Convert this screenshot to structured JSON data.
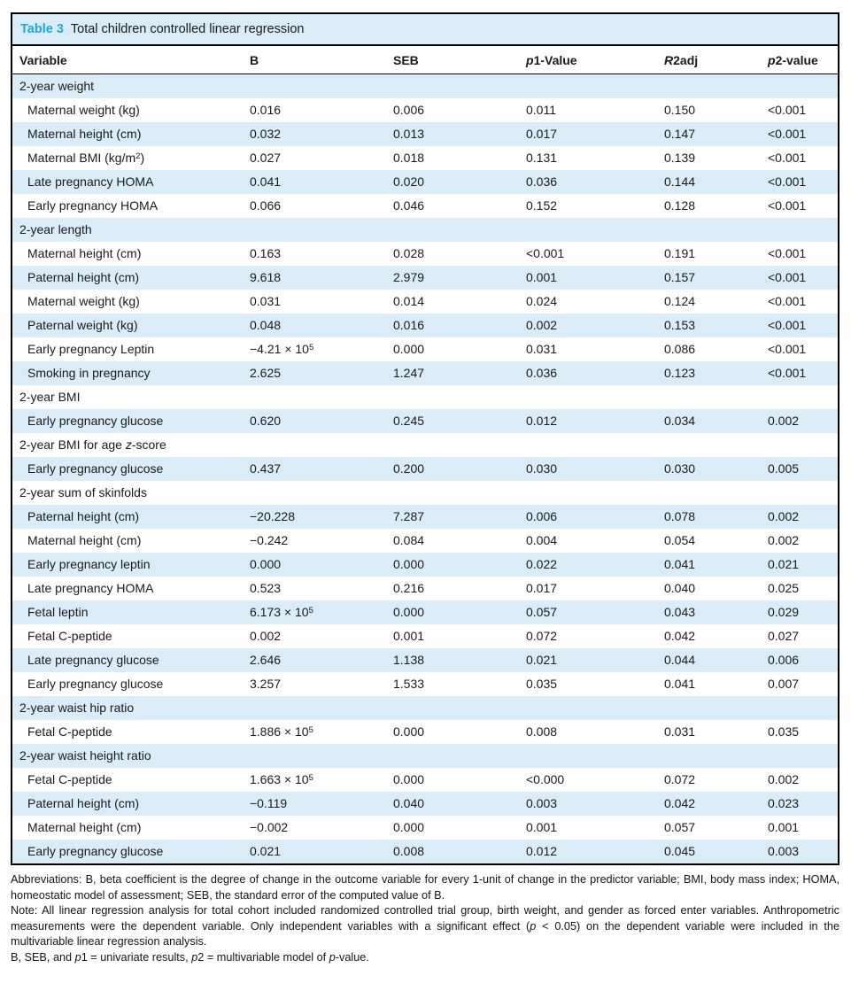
{
  "colors": {
    "accent": "#1ea7dd",
    "row_alt": "#d9ecf8",
    "border": "#000000",
    "text": "#1a1a1a"
  },
  "title": {
    "label": "Table 3",
    "text": "Total children controlled linear regression"
  },
  "table": {
    "columns": [
      "Variable",
      "B",
      "SEB",
      [
        {
          "t": "p",
          "i": true
        },
        {
          "t": "1-Value"
        }
      ],
      [
        {
          "t": "R",
          "i": true
        },
        {
          "t": "2adj"
        }
      ],
      [
        {
          "t": "p",
          "i": true
        },
        {
          "t": "2-value"
        }
      ]
    ],
    "rows": [
      {
        "type": "section",
        "variable": "2-year weight"
      },
      {
        "type": "data",
        "variable": "Maternal weight (kg)",
        "b": "0.016",
        "seb": "0.006",
        "p1": "0.011",
        "r2adj": "0.150",
        "p2": "<0.001"
      },
      {
        "type": "data",
        "variable": "Maternal height (cm)",
        "b": "0.032",
        "seb": "0.013",
        "p1": "0.017",
        "r2adj": "0.147",
        "p2": "<0.001"
      },
      {
        "type": "data",
        "variable": [
          {
            "t": "Maternal BMI (kg/m"
          },
          {
            "t": "2",
            "s": true
          },
          {
            "t": ")"
          }
        ],
        "b": "0.027",
        "seb": "0.018",
        "p1": "0.131",
        "r2adj": "0.139",
        "p2": "<0.001"
      },
      {
        "type": "data",
        "variable": "Late pregnancy HOMA",
        "b": "0.041",
        "seb": "0.020",
        "p1": "0.036",
        "r2adj": "0.144",
        "p2": "<0.001"
      },
      {
        "type": "data",
        "variable": "Early pregnancy HOMA",
        "b": "0.066",
        "seb": "0.046",
        "p1": "0.152",
        "r2adj": "0.128",
        "p2": "<0.001"
      },
      {
        "type": "section",
        "variable": "2-year length"
      },
      {
        "type": "data",
        "variable": "Maternal height (cm)",
        "b": "0.163",
        "seb": "0.028",
        "p1": "<0.001",
        "r2adj": "0.191",
        "p2": "<0.001"
      },
      {
        "type": "data",
        "variable": "Paternal height (cm)",
        "b": "9.618",
        "seb": "2.979",
        "p1": "0.001",
        "r2adj": "0.157",
        "p2": "<0.001"
      },
      {
        "type": "data",
        "variable": "Maternal weight (kg)",
        "b": "0.031",
        "seb": "0.014",
        "p1": "0.024",
        "r2adj": "0.124",
        "p2": "<0.001"
      },
      {
        "type": "data",
        "variable": "Paternal weight (kg)",
        "b": "0.048",
        "seb": "0.016",
        "p1": "0.002",
        "r2adj": "0.153",
        "p2": "<0.001"
      },
      {
        "type": "data",
        "variable": "Early pregnancy Leptin",
        "b": [
          {
            "t": "−4.21 × 10"
          },
          {
            "t": "5",
            "s": true
          }
        ],
        "seb": "0.000",
        "p1": "0.031",
        "r2adj": "0.086",
        "p2": "<0.001"
      },
      {
        "type": "data",
        "variable": "Smoking in pregnancy",
        "b": "2.625",
        "seb": "1.247",
        "p1": "0.036",
        "r2adj": "0.123",
        "p2": "<0.001"
      },
      {
        "type": "section",
        "variable": "2-year BMI"
      },
      {
        "type": "data",
        "variable": "Early pregnancy glucose",
        "b": "0.620",
        "seb": "0.245",
        "p1": "0.012",
        "r2adj": "0.034",
        "p2": "0.002"
      },
      {
        "type": "section",
        "variable": [
          {
            "t": "2-year BMI for age "
          },
          {
            "t": "z",
            "i": true
          },
          {
            "t": "-score"
          }
        ]
      },
      {
        "type": "data",
        "variable": "Early pregnancy glucose",
        "b": "0.437",
        "seb": "0.200",
        "p1": "0.030",
        "r2adj": "0.030",
        "p2": "0.005"
      },
      {
        "type": "section",
        "variable": "2-year sum of skinfolds"
      },
      {
        "type": "data",
        "variable": "Paternal height (cm)",
        "b": "−20.228",
        "seb": "7.287",
        "p1": "0.006",
        "r2adj": "0.078",
        "p2": "0.002"
      },
      {
        "type": "data",
        "variable": "Maternal height (cm)",
        "b": "−0.242",
        "seb": "0.084",
        "p1": "0.004",
        "r2adj": "0.054",
        "p2": "0.002"
      },
      {
        "type": "data",
        "variable": "Early pregnancy leptin",
        "b": "0.000",
        "seb": "0.000",
        "p1": "0.022",
        "r2adj": "0.041",
        "p2": "0.021"
      },
      {
        "type": "data",
        "variable": "Late pregnancy HOMA",
        "b": "0.523",
        "seb": "0.216",
        "p1": "0.017",
        "r2adj": "0.040",
        "p2": "0.025"
      },
      {
        "type": "data",
        "variable": "Fetal leptin",
        "b": [
          {
            "t": "6.173 × 10"
          },
          {
            "t": "5",
            "s": true
          }
        ],
        "seb": "0.000",
        "p1": "0.057",
        "r2adj": "0.043",
        "p2": "0.029"
      },
      {
        "type": "data",
        "variable": "Fetal C-peptide",
        "b": "0.002",
        "seb": "0.001",
        "p1": "0.072",
        "r2adj": "0.042",
        "p2": "0.027"
      },
      {
        "type": "data",
        "variable": "Late pregnancy glucose",
        "b": "2.646",
        "seb": "1.138",
        "p1": "0.021",
        "r2adj": "0.044",
        "p2": "0.006"
      },
      {
        "type": "data",
        "variable": "Early pregnancy glucose",
        "b": "3.257",
        "seb": "1.533",
        "p1": "0.035",
        "r2adj": "0.041",
        "p2": "0.007"
      },
      {
        "type": "section",
        "variable": "2-year waist hip ratio"
      },
      {
        "type": "data",
        "variable": "Fetal C-peptide",
        "b": [
          {
            "t": "1.886 × 10"
          },
          {
            "t": "5",
            "s": true
          }
        ],
        "seb": "0.000",
        "p1": "0.008",
        "r2adj": "0.031",
        "p2": "0.035"
      },
      {
        "type": "section",
        "variable": "2-year waist height ratio"
      },
      {
        "type": "data",
        "variable": "Fetal C-peptide",
        "b": [
          {
            "t": "1.663 × 10"
          },
          {
            "t": "5",
            "s": true
          }
        ],
        "seb": "0.000",
        "p1": "<0.000",
        "r2adj": "0.072",
        "p2": "0.002"
      },
      {
        "type": "data",
        "variable": "Paternal height (cm)",
        "b": "−0.119",
        "seb": "0.040",
        "p1": "0.003",
        "r2adj": "0.042",
        "p2": "0.023"
      },
      {
        "type": "data",
        "variable": "Maternal height (cm)",
        "b": "−0.002",
        "seb": "0.000",
        "p1": "0.001",
        "r2adj": "0.057",
        "p2": "0.001"
      },
      {
        "type": "data",
        "variable": "Early pregnancy glucose",
        "b": "0.021",
        "seb": "0.008",
        "p1": "0.012",
        "r2adj": "0.045",
        "p2": "0.003"
      }
    ]
  },
  "footnotes": [
    {
      "parts": [
        {
          "t": "Abbreviations: B, beta coefficient is the degree of change in the outcome variable for every 1-unit of change in the predictor variable; BMI, body mass index; HOMA, homeostatic model of assessment; SEB, the standard error of the computed value of B."
        }
      ]
    },
    {
      "parts": [
        {
          "t": "Note: All linear regression analysis for total cohort included randomized controlled trial group, birth weight, and gender as forced enter variables. Anthropometric measurements were the dependent variable. Only independent variables with a significant effect ("
        },
        {
          "t": "p",
          "i": true
        },
        {
          "t": " < 0.05) on the dependent variable were included in the multivariable linear regression analysis."
        }
      ]
    },
    {
      "parts": [
        {
          "t": "B, SEB, and "
        },
        {
          "t": "p",
          "i": true
        },
        {
          "t": "1 = univariate results, "
        },
        {
          "t": "p",
          "i": true
        },
        {
          "t": "2 = multivariable model of "
        },
        {
          "t": "p",
          "i": true
        },
        {
          "t": "-value."
        }
      ]
    }
  ]
}
